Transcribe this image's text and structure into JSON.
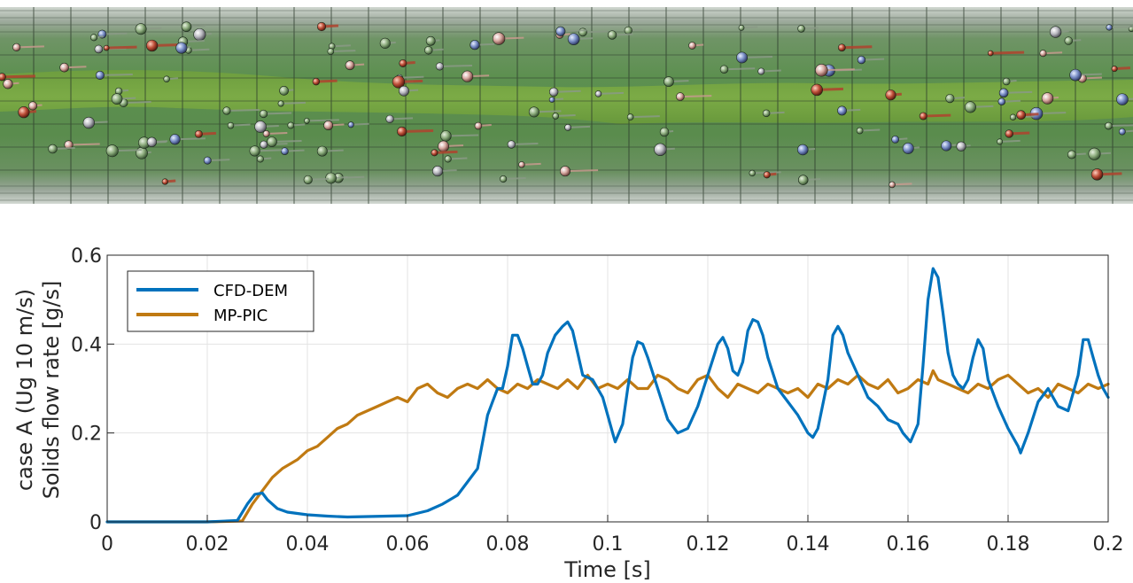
{
  "colors": {
    "cfd_dem": "#0072BD",
    "mp_pic": "#C07A12",
    "grid": "#E3E3E3",
    "axis": "#262626",
    "pipe_green": "#4F8A46",
    "pipe_core": "#6E9E3E",
    "pipe_outer": "#9AA89A"
  },
  "icons": {
    "simulation_view": "pipe-particle-snapshot-icon"
  },
  "chart_data": {
    "type": "line",
    "title": "",
    "xlabel": "Time [s]",
    "ylabel_line1": "case A (Ug 10 m/s)",
    "ylabel_line2": "Solids flow rate [g/s]",
    "xlim": [
      0,
      0.2
    ],
    "ylim": [
      0,
      0.6
    ],
    "xticks": [
      0,
      0.02,
      0.04,
      0.06,
      0.08,
      0.1,
      0.12,
      0.14,
      0.16,
      0.18,
      0.2
    ],
    "xtick_labels": [
      "0",
      "0.02",
      "0.04",
      "0.06",
      "0.08",
      "0.1",
      "0.12",
      "0.14",
      "0.16",
      "0.18",
      "0.2"
    ],
    "yticks": [
      0,
      0.2,
      0.4,
      0.6
    ],
    "ytick_labels": [
      "0",
      "0.2",
      "0.4",
      "0.6"
    ],
    "grid": true,
    "legend_position": "top-left",
    "series": [
      {
        "name": "CFD-DEM",
        "color": "#0072BD",
        "points": [
          [
            0,
            0
          ],
          [
            0.01,
            0
          ],
          [
            0.02,
            0
          ],
          [
            0.026,
            0.003
          ],
          [
            0.028,
            0.04
          ],
          [
            0.0295,
            0.062
          ],
          [
            0.031,
            0.065
          ],
          [
            0.032,
            0.05
          ],
          [
            0.034,
            0.03
          ],
          [
            0.036,
            0.022
          ],
          [
            0.04,
            0.016
          ],
          [
            0.044,
            0.013
          ],
          [
            0.048,
            0.011
          ],
          [
            0.052,
            0.012
          ],
          [
            0.056,
            0.013
          ],
          [
            0.06,
            0.014
          ],
          [
            0.064,
            0.025
          ],
          [
            0.067,
            0.04
          ],
          [
            0.07,
            0.06
          ],
          [
            0.072,
            0.09
          ],
          [
            0.074,
            0.12
          ],
          [
            0.075,
            0.18
          ],
          [
            0.076,
            0.24
          ],
          [
            0.077,
            0.27
          ],
          [
            0.078,
            0.3
          ],
          [
            0.079,
            0.3
          ],
          [
            0.08,
            0.35
          ],
          [
            0.081,
            0.42
          ],
          [
            0.082,
            0.42
          ],
          [
            0.083,
            0.39
          ],
          [
            0.084,
            0.35
          ],
          [
            0.085,
            0.31
          ],
          [
            0.086,
            0.31
          ],
          [
            0.087,
            0.33
          ],
          [
            0.088,
            0.38
          ],
          [
            0.0895,
            0.42
          ],
          [
            0.091,
            0.44
          ],
          [
            0.092,
            0.45
          ],
          [
            0.093,
            0.43
          ],
          [
            0.094,
            0.38
          ],
          [
            0.095,
            0.33
          ],
          [
            0.097,
            0.32
          ],
          [
            0.099,
            0.28
          ],
          [
            0.1,
            0.24
          ],
          [
            0.101,
            0.2
          ],
          [
            0.1015,
            0.18
          ],
          [
            0.103,
            0.22
          ],
          [
            0.104,
            0.3
          ],
          [
            0.105,
            0.37
          ],
          [
            0.106,
            0.405
          ],
          [
            0.107,
            0.4
          ],
          [
            0.108,
            0.37
          ],
          [
            0.11,
            0.3
          ],
          [
            0.112,
            0.23
          ],
          [
            0.114,
            0.2
          ],
          [
            0.116,
            0.21
          ],
          [
            0.118,
            0.26
          ],
          [
            0.12,
            0.33
          ],
          [
            0.122,
            0.4
          ],
          [
            0.123,
            0.415
          ],
          [
            0.124,
            0.39
          ],
          [
            0.125,
            0.34
          ],
          [
            0.126,
            0.33
          ],
          [
            0.127,
            0.36
          ],
          [
            0.128,
            0.43
          ],
          [
            0.129,
            0.455
          ],
          [
            0.13,
            0.45
          ],
          [
            0.131,
            0.42
          ],
          [
            0.132,
            0.37
          ],
          [
            0.134,
            0.3
          ],
          [
            0.136,
            0.27
          ],
          [
            0.138,
            0.24
          ],
          [
            0.14,
            0.2
          ],
          [
            0.141,
            0.19
          ],
          [
            0.142,
            0.21
          ],
          [
            0.144,
            0.32
          ],
          [
            0.145,
            0.42
          ],
          [
            0.146,
            0.44
          ],
          [
            0.147,
            0.42
          ],
          [
            0.148,
            0.38
          ],
          [
            0.15,
            0.33
          ],
          [
            0.152,
            0.28
          ],
          [
            0.154,
            0.26
          ],
          [
            0.156,
            0.23
          ],
          [
            0.158,
            0.22
          ],
          [
            0.159,
            0.2
          ],
          [
            0.1605,
            0.18
          ],
          [
            0.162,
            0.22
          ],
          [
            0.163,
            0.35
          ],
          [
            0.164,
            0.5
          ],
          [
            0.165,
            0.57
          ],
          [
            0.166,
            0.55
          ],
          [
            0.167,
            0.47
          ],
          [
            0.168,
            0.38
          ],
          [
            0.169,
            0.33
          ],
          [
            0.17,
            0.31
          ],
          [
            0.171,
            0.3
          ],
          [
            0.172,
            0.32
          ],
          [
            0.173,
            0.37
          ],
          [
            0.174,
            0.41
          ],
          [
            0.175,
            0.39
          ],
          [
            0.176,
            0.32
          ],
          [
            0.178,
            0.26
          ],
          [
            0.18,
            0.21
          ],
          [
            0.182,
            0.17
          ],
          [
            0.1825,
            0.155
          ],
          [
            0.184,
            0.2
          ],
          [
            0.186,
            0.27
          ],
          [
            0.188,
            0.3
          ],
          [
            0.19,
            0.26
          ],
          [
            0.192,
            0.25
          ],
          [
            0.194,
            0.33
          ],
          [
            0.195,
            0.41
          ],
          [
            0.196,
            0.41
          ],
          [
            0.197,
            0.37
          ],
          [
            0.198,
            0.33
          ],
          [
            0.199,
            0.3
          ],
          [
            0.2,
            0.28
          ]
        ]
      },
      {
        "name": "MP-PIC",
        "color": "#C07A12",
        "points": [
          [
            0,
            0
          ],
          [
            0.01,
            0
          ],
          [
            0.02,
            0
          ],
          [
            0.027,
            0.002
          ],
          [
            0.029,
            0.04
          ],
          [
            0.031,
            0.07
          ],
          [
            0.033,
            0.1
          ],
          [
            0.035,
            0.12
          ],
          [
            0.038,
            0.14
          ],
          [
            0.04,
            0.16
          ],
          [
            0.042,
            0.17
          ],
          [
            0.044,
            0.19
          ],
          [
            0.046,
            0.21
          ],
          [
            0.048,
            0.22
          ],
          [
            0.05,
            0.24
          ],
          [
            0.052,
            0.25
          ],
          [
            0.054,
            0.26
          ],
          [
            0.056,
            0.27
          ],
          [
            0.058,
            0.28
          ],
          [
            0.06,
            0.27
          ],
          [
            0.062,
            0.3
          ],
          [
            0.064,
            0.31
          ],
          [
            0.066,
            0.29
          ],
          [
            0.068,
            0.28
          ],
          [
            0.07,
            0.3
          ],
          [
            0.072,
            0.31
          ],
          [
            0.074,
            0.3
          ],
          [
            0.076,
            0.32
          ],
          [
            0.078,
            0.3
          ],
          [
            0.08,
            0.29
          ],
          [
            0.082,
            0.31
          ],
          [
            0.084,
            0.3
          ],
          [
            0.086,
            0.32
          ],
          [
            0.088,
            0.31
          ],
          [
            0.09,
            0.3
          ],
          [
            0.092,
            0.32
          ],
          [
            0.094,
            0.3
          ],
          [
            0.096,
            0.33
          ],
          [
            0.098,
            0.3
          ],
          [
            0.1,
            0.31
          ],
          [
            0.102,
            0.3
          ],
          [
            0.104,
            0.32
          ],
          [
            0.106,
            0.3
          ],
          [
            0.108,
            0.3
          ],
          [
            0.11,
            0.33
          ],
          [
            0.112,
            0.32
          ],
          [
            0.114,
            0.3
          ],
          [
            0.116,
            0.29
          ],
          [
            0.118,
            0.32
          ],
          [
            0.12,
            0.33
          ],
          [
            0.122,
            0.3
          ],
          [
            0.124,
            0.28
          ],
          [
            0.126,
            0.31
          ],
          [
            0.128,
            0.3
          ],
          [
            0.13,
            0.29
          ],
          [
            0.132,
            0.31
          ],
          [
            0.134,
            0.3
          ],
          [
            0.136,
            0.29
          ],
          [
            0.138,
            0.3
          ],
          [
            0.14,
            0.28
          ],
          [
            0.142,
            0.31
          ],
          [
            0.144,
            0.3
          ],
          [
            0.146,
            0.32
          ],
          [
            0.148,
            0.31
          ],
          [
            0.15,
            0.33
          ],
          [
            0.152,
            0.31
          ],
          [
            0.154,
            0.3
          ],
          [
            0.156,
            0.32
          ],
          [
            0.158,
            0.29
          ],
          [
            0.16,
            0.3
          ],
          [
            0.162,
            0.32
          ],
          [
            0.164,
            0.31
          ],
          [
            0.165,
            0.34
          ],
          [
            0.166,
            0.32
          ],
          [
            0.168,
            0.31
          ],
          [
            0.17,
            0.3
          ],
          [
            0.172,
            0.29
          ],
          [
            0.174,
            0.31
          ],
          [
            0.176,
            0.3
          ],
          [
            0.178,
            0.32
          ],
          [
            0.18,
            0.33
          ],
          [
            0.182,
            0.31
          ],
          [
            0.184,
            0.29
          ],
          [
            0.186,
            0.3
          ],
          [
            0.188,
            0.28
          ],
          [
            0.19,
            0.31
          ],
          [
            0.192,
            0.3
          ],
          [
            0.194,
            0.29
          ],
          [
            0.196,
            0.31
          ],
          [
            0.198,
            0.3
          ],
          [
            0.2,
            0.31
          ]
        ]
      }
    ]
  }
}
